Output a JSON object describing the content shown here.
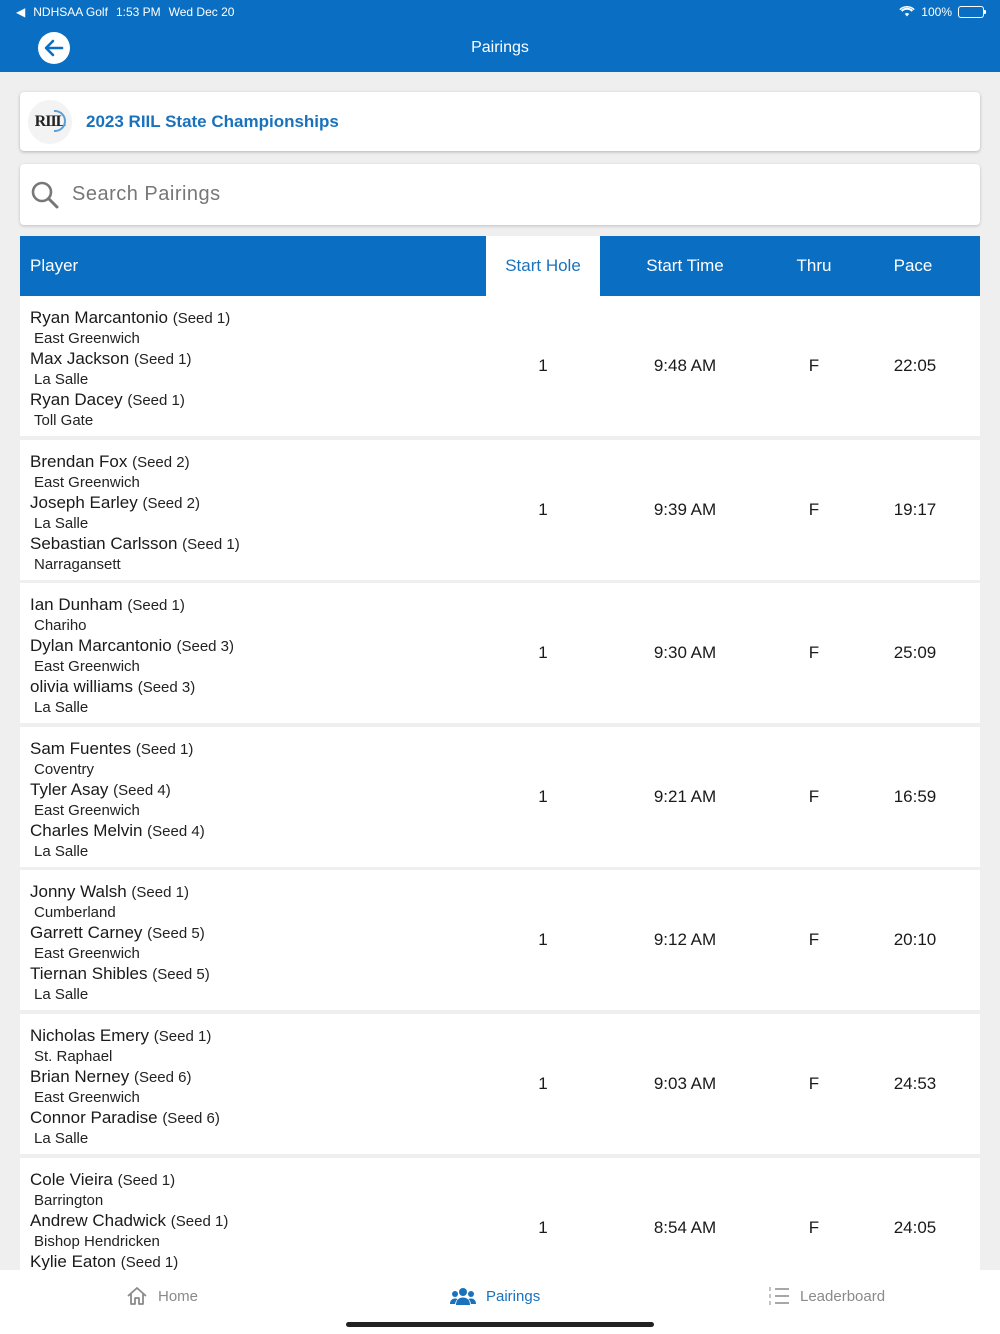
{
  "status": {
    "back_app": "NDHSAA Golf",
    "time": "1:53 PM",
    "date": "Wed Dec 20",
    "battery": "100%"
  },
  "nav": {
    "title": "Pairings"
  },
  "event": {
    "title": "2023 RIIL State Championships",
    "logo_text": "RIIL"
  },
  "search": {
    "placeholder": "Search Pairings"
  },
  "columns": {
    "player": "Player",
    "start_hole": "Start Hole",
    "start_time": "Start Time",
    "thru": "Thru",
    "pace": "Pace"
  },
  "rows": [
    {
      "players": [
        {
          "name": "Ryan Marcantonio",
          "seed": "(Seed 1)",
          "school": "East Greenwich"
        },
        {
          "name": "Max Jackson",
          "seed": "(Seed 1)",
          "school": "La Salle"
        },
        {
          "name": "Ryan Dacey",
          "seed": "(Seed 1)",
          "school": "Toll Gate"
        }
      ],
      "start_hole": "1",
      "start_time": "9:48 AM",
      "thru": "F",
      "pace": "22:05"
    },
    {
      "players": [
        {
          "name": "Brendan Fox",
          "seed": "(Seed 2)",
          "school": "East Greenwich"
        },
        {
          "name": "Joseph Earley",
          "seed": "(Seed 2)",
          "school": "La Salle"
        },
        {
          "name": "Sebastian Carlsson",
          "seed": "(Seed 1)",
          "school": "Narragansett"
        }
      ],
      "start_hole": "1",
      "start_time": "9:39 AM",
      "thru": "F",
      "pace": "19:17"
    },
    {
      "players": [
        {
          "name": "Ian Dunham",
          "seed": "(Seed 1)",
          "school": "Chariho"
        },
        {
          "name": "Dylan Marcantonio",
          "seed": "(Seed 3)",
          "school": "East Greenwich"
        },
        {
          "name": "olivia williams",
          "seed": "(Seed 3)",
          "school": "La Salle"
        }
      ],
      "start_hole": "1",
      "start_time": "9:30 AM",
      "thru": "F",
      "pace": "25:09"
    },
    {
      "players": [
        {
          "name": "Sam Fuentes",
          "seed": "(Seed 1)",
          "school": "Coventry"
        },
        {
          "name": "Tyler Asay",
          "seed": "(Seed 4)",
          "school": "East Greenwich"
        },
        {
          "name": "Charles Melvin",
          "seed": "(Seed 4)",
          "school": "La Salle"
        }
      ],
      "start_hole": "1",
      "start_time": "9:21 AM",
      "thru": "F",
      "pace": "16:59"
    },
    {
      "players": [
        {
          "name": "Jonny Walsh",
          "seed": "(Seed 1)",
          "school": "Cumberland"
        },
        {
          "name": "Garrett Carney",
          "seed": "(Seed 5)",
          "school": "East Greenwich"
        },
        {
          "name": "Tiernan Shibles",
          "seed": "(Seed 5)",
          "school": "La Salle"
        }
      ],
      "start_hole": "1",
      "start_time": "9:12 AM",
      "thru": "F",
      "pace": "20:10"
    },
    {
      "players": [
        {
          "name": "Nicholas Emery",
          "seed": "(Seed 1)",
          "school": "St. Raphael"
        },
        {
          "name": "Brian Nerney",
          "seed": "(Seed 6)",
          "school": "East Greenwich"
        },
        {
          "name": "Connor Paradise",
          "seed": "(Seed 6)",
          "school": "La Salle"
        }
      ],
      "start_hole": "1",
      "start_time": "9:03 AM",
      "thru": "F",
      "pace": "24:53"
    },
    {
      "players": [
        {
          "name": "Cole Vieira",
          "seed": "(Seed 1)",
          "school": "Barrington"
        },
        {
          "name": "Andrew Chadwick",
          "seed": "(Seed 1)",
          "school": "Bishop Hendricken"
        },
        {
          "name": "Kylie Eaton",
          "seed": "(Seed 1)",
          "school": ""
        }
      ],
      "start_hole": "1",
      "start_time": "8:54 AM",
      "thru": "F",
      "pace": "24:05"
    }
  ],
  "tabs": {
    "home": "Home",
    "pairings": "Pairings",
    "leaderboard": "Leaderboard"
  },
  "colors": {
    "brand": "#0a6fc2",
    "accent_text": "#1a72bd",
    "inactive_tab": "#8a8a8a"
  }
}
